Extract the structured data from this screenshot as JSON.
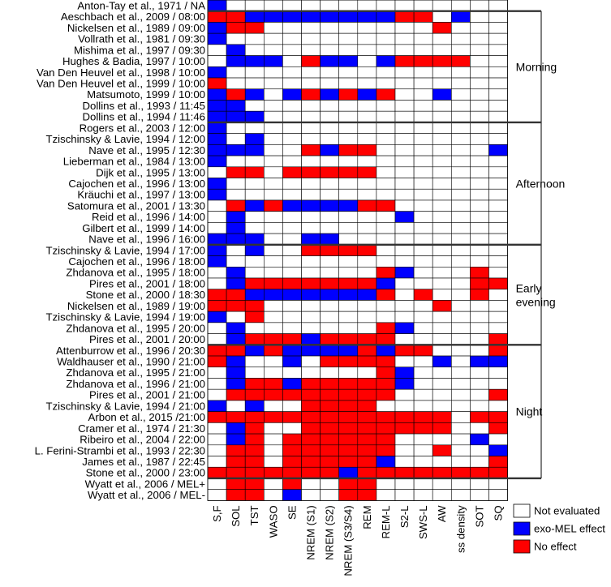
{
  "chart_data": {
    "type": "heatmap",
    "title": "",
    "legend": {
      "position": "bottom-right",
      "entries": [
        {
          "key": "W",
          "label": "Not evaluated",
          "color": "#ffffff"
        },
        {
          "key": "B",
          "label": "exo-MEL effect",
          "color": "#0000ff"
        },
        {
          "key": "R",
          "label": "No effect",
          "color": "#ff0000"
        }
      ]
    },
    "columns": [
      "S,F",
      "SOL",
      "TST",
      "WASO",
      "SE",
      "NREM (S1)",
      "NREM (S2)",
      "NREM (S3/S4)",
      "REM",
      "REM-L",
      "S2-L",
      "SWS-L",
      "AW",
      "ss density",
      "SOT",
      "SQ"
    ],
    "groups": [
      {
        "label": "Morning",
        "start": 1,
        "end": 10
      },
      {
        "label": "Afternoon",
        "start": 11,
        "end": 21
      },
      {
        "label": "Early evening",
        "start": 22,
        "end": 30
      },
      {
        "label": "Night",
        "start": 31,
        "end": 42
      }
    ],
    "rows": [
      {
        "label": "Anton-Tay et al., 1971 / NA",
        "cells": "BWWWWWWWWWWWWWWW"
      },
      {
        "label": "Aeschbach et al., 2009 / 08:00",
        "cells": "RRBBBBBBBBRRWBWW"
      },
      {
        "label": "Nickelsen et al., 1989 / 09:00",
        "cells": "BRRWWWWWWWWWRWWW"
      },
      {
        "label": "Vollrath et al., 1981 / 09:30",
        "cells": "BWWWWWWWWWWWWWWW"
      },
      {
        "label": "Mishima et al., 1997 / 09:30",
        "cells": "WBWWWWWWWWWWWWWW"
      },
      {
        "label": "Hughes & Badia, 1997 / 10:00",
        "cells": "WBBBWRBBWBRRRRWW"
      },
      {
        "label": "Van Den Heuvel et al., 1998 / 10:00",
        "cells": "BWWWWWWWWWWWWWWW"
      },
      {
        "label": "Van Den Heuvel et al., 1999 / 10:00",
        "cells": "RWWWWWWWWWWWWWWW"
      },
      {
        "label": "Matsumoto, 1999 / 10:00",
        "cells": "BRBWBRBRBRWWBWWW"
      },
      {
        "label": "Dollins et al., 1993 / 11:45",
        "cells": "BBWWWWWWWWWWWWWW"
      },
      {
        "label": "Dollins et al., 1994 / 11:46",
        "cells": "BBBWWWWWWWWWWWWW"
      },
      {
        "label": "Rogers et al., 2003 / 12:00",
        "cells": "BWWWWWWWWWWWWWWW"
      },
      {
        "label": "Tzischinsky & Lavie, 1994 / 12:00",
        "cells": "BWBWWWWWWWWWWWWW"
      },
      {
        "label": "Nave et al., 1995 / 12:30",
        "cells": "BBBWWRBRRWWWWWWB"
      },
      {
        "label": "Lieberman et al., 1984 / 13:00",
        "cells": "BWWWWWWWWWWWWWWW"
      },
      {
        "label": "Dijk et al., 1995 / 13:00",
        "cells": "WRRWRRRRRWWWWWWW"
      },
      {
        "label": "Cajochen et al., 1996 / 13:00",
        "cells": "BWWWWWWWWWWWWWWW"
      },
      {
        "label": "Kräuchi et al., 1997 / 13:00",
        "cells": "BWWWWWWWWWWWWWWW"
      },
      {
        "label": "Satomura et al., 2001 / 13:30",
        "cells": "WRBRBBBBRRWWWWWW"
      },
      {
        "label": "Reid et al., 1996 / 14:00",
        "cells": "WBWWWWWWWWBWWWWW"
      },
      {
        "label": "Gilbert et al., 1999 / 14:00",
        "cells": "WBWWWWWWWWWWWWWW"
      },
      {
        "label": "Nave et al., 1996 / 16:00",
        "cells": "BBBWWBBWWWWWWWWW"
      },
      {
        "label": "Tzischinsky & Lavie, 1994 / 17:00",
        "cells": "BWBWWRRRRWWWWWWW"
      },
      {
        "label": "Cajochen et al., 1996 / 18:00",
        "cells": "BWWWWWWWWWWWWWWW"
      },
      {
        "label": "Zhdanova et al., 1995 / 18:00",
        "cells": "WBWWWWWWWRBWWWRW"
      },
      {
        "label": "Pires et al., 2001 / 18:00",
        "cells": "WBRRRRRRRBWWWWRR"
      },
      {
        "label": "Stone et al., 2000 / 18:30",
        "cells": "RRBBBBBBBRWRWWRW"
      },
      {
        "label": "Nickelsen et al., 1989 / 19:00",
        "cells": "RRRWWWWWWWWWRWWW"
      },
      {
        "label": "Tzischinsky & Lavie, 1994 / 19:00",
        "cells": "BWRWWWWWWWWWWWWW"
      },
      {
        "label": "Zhdanova et al., 1995 / 20:00",
        "cells": "WBWWWWWWWRBWWWWW"
      },
      {
        "label": "Pires et al., 2001 / 20:00",
        "cells": "WBRRRBRRRRWWWWWR"
      },
      {
        "label": "Attenburrow et al., 1996 / 20:30",
        "cells": "RRBRBBBBRBRRWWWR"
      },
      {
        "label": "Waldhauser et al., 1990 / 21:00",
        "cells": "RBWWBWRRRRWWBWBB"
      },
      {
        "label": "Zhdanova et al., 1995 / 21:00",
        "cells": "WBWWWWWWWRBWWWWW"
      },
      {
        "label": "Zhdanova et al., 1996 / 21:00",
        "cells": "WBRRBRRRRRBWWWWW"
      },
      {
        "label": "Pires et al., 2001 / 21:00",
        "cells": "WRRRRRRRRRWWWWWR"
      },
      {
        "label": "Tzischinsky & Lavie, 1994 / 21:00",
        "cells": "BWBWWRRRRWWWWWWW"
      },
      {
        "label": "Arbon et al., 2015 /21:00",
        "cells": "RRRRRRRRRRRRRWRR"
      },
      {
        "label": "Cramer et al., 1974 / 21:30",
        "cells": "WBRWWRRRRRRRRWWR"
      },
      {
        "label": "Ribeiro et al., 2004 / 22:00",
        "cells": "WBRWRRRRRRWWWWBW"
      },
      {
        "label": "L. Ferini-Strambi et al., 1993 / 22:30",
        "cells": "WRRWRRRRRRWWRWWB"
      },
      {
        "label": "James et al., 1987 / 22:45",
        "cells": "WRRWRRRRRBWWWWWR"
      },
      {
        "label": "Stone et al., 2000 / 23:00",
        "cells": "RRRRRRRBRRRRRRRR"
      },
      {
        "label": "Wyatt et al., 2006 / MEL+",
        "cells": "WRRWRWWRRWWWWWWW"
      },
      {
        "label": "Wyatt et al., 2006 / MEL-",
        "cells": "WRRWBWWRRWWWWWWW"
      }
    ]
  }
}
